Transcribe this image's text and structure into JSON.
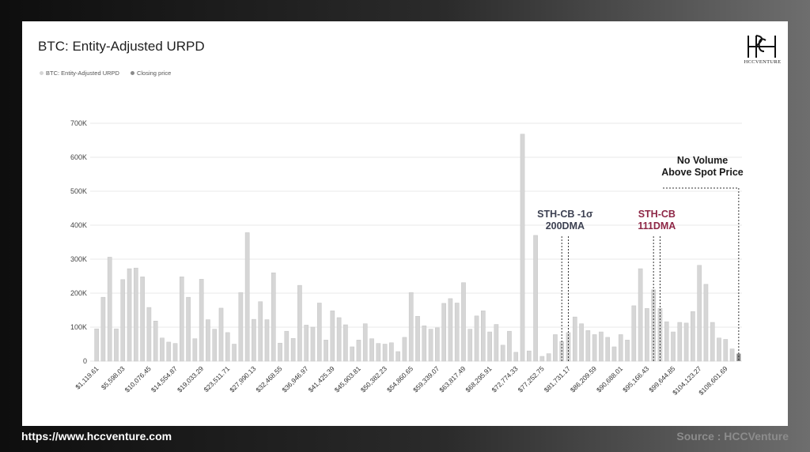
{
  "chart_data": {
    "type": "bar",
    "title": "BTC: Entity-Adjusted URPD",
    "legend": [
      "BTC: Entity-Adjusted URPD",
      "Closing price"
    ],
    "legend_position": "top-left",
    "grid": true,
    "ylim": [
      0,
      700000
    ],
    "y_ticks": [
      0,
      100000,
      200000,
      300000,
      400000,
      500000,
      600000,
      700000
    ],
    "y_tick_labels": [
      "0",
      "100K",
      "200K",
      "300K",
      "400K",
      "500K",
      "600K",
      "700K"
    ],
    "x_tick_labels": [
      "$1,119.61",
      "$5,598.03",
      "$10,076.45",
      "$14,554.87",
      "$19,033.29",
      "$23,511.71",
      "$27,990.13",
      "$32,468.55",
      "$36,946.97",
      "$41,425.39",
      "$45,903.81",
      "$50,382.23",
      "$54,860.65",
      "$59,339.07",
      "$63,817.49",
      "$68,295.91",
      "$72,774.33",
      "$77,252.75",
      "$81,731.17",
      "$86,209.59",
      "$90,688.01",
      "$95,166.43",
      "$99,644.85",
      "$104,123.27",
      "$108,601.69"
    ],
    "x_tick_every": 4,
    "series": [
      {
        "name": "BTC: Entity-Adjusted URPD",
        "color": "#d6d6d6",
        "values": [
          95000,
          188000,
          306000,
          95000,
          240000,
          272000,
          274000,
          248000,
          158000,
          118000,
          68000,
          56000,
          52000,
          248000,
          188000,
          66000,
          241000,
          122000,
          94000,
          156000,
          84000,
          50000,
          202000,
          378000,
          123000,
          175000,
          122000,
          260000,
          53000,
          88000,
          67000,
          223000,
          106000,
          100000,
          171000,
          62000,
          148000,
          128000,
          107000,
          42000,
          62000,
          110000,
          66000,
          52000,
          50000,
          54000,
          28000,
          70000,
          202000,
          132000,
          104000,
          94000,
          98000,
          170000,
          184000,
          171000,
          231000,
          94000,
          133000,
          148000,
          86000,
          108000,
          47000,
          88000,
          26000,
          668000,
          30000,
          370000,
          14000,
          22000,
          78000,
          58000,
          84000,
          130000,
          110000,
          90000,
          78000,
          86000,
          70000,
          42000,
          78000,
          62000,
          163000,
          272000,
          155000,
          210000,
          155000,
          116000,
          86000,
          114000,
          112000,
          146000,
          282000,
          226000,
          114000,
          68000,
          64000,
          36000
        ]
      },
      {
        "name": "Closing price",
        "color": "#8a8a8a",
        "values": [
          22000
        ],
        "x_index": 98
      }
    ],
    "annotations": [
      {
        "lines": [
          "STH-CB -1σ",
          "200DMA"
        ],
        "color": "#3d4152",
        "x_indices": [
          71,
          72
        ]
      },
      {
        "lines": [
          "STH-CB",
          "111DMA"
        ],
        "color": "#8e2746",
        "x_indices": [
          85,
          86
        ]
      },
      {
        "lines": [
          "No Volume",
          "Above Spot Price"
        ],
        "color": "#1a1a1a",
        "x_indices": [
          98
        ]
      }
    ]
  },
  "logo": {
    "text": "HCCVENTURE"
  },
  "footer": {
    "url": "https://www.hccventure.com",
    "source": "Source : HCCVenture"
  }
}
